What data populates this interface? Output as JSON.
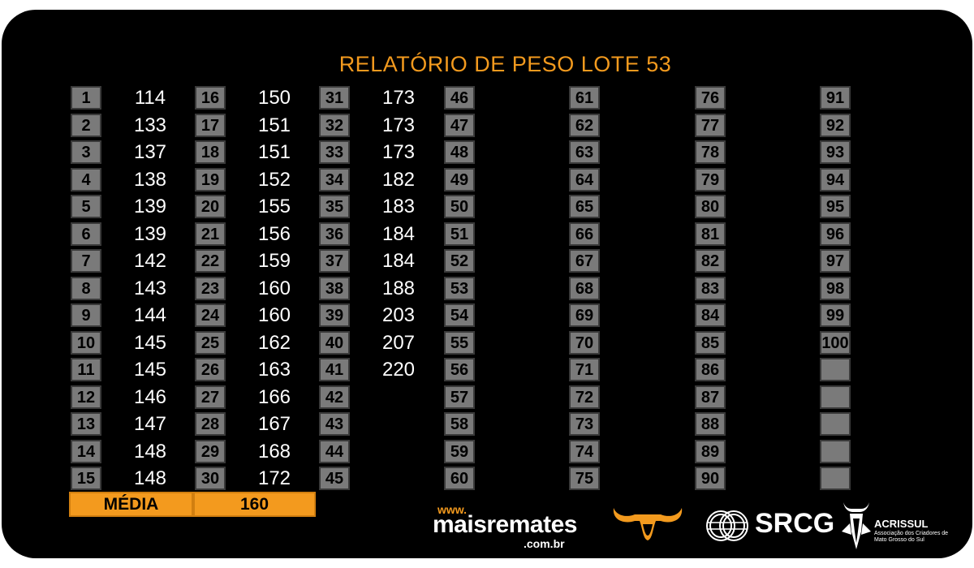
{
  "title": "RELATÓRIO DE PESO LOTE 53",
  "columns": [
    {
      "numbers": [
        "1",
        "2",
        "3",
        "4",
        "5",
        "6",
        "7",
        "8",
        "9",
        "10",
        "11",
        "12",
        "13",
        "14",
        "15"
      ],
      "weights": [
        "114",
        "133",
        "137",
        "138",
        "139",
        "139",
        "142",
        "143",
        "144",
        "145",
        "145",
        "146",
        "147",
        "148",
        "148"
      ]
    },
    {
      "numbers": [
        "16",
        "17",
        "18",
        "19",
        "20",
        "21",
        "22",
        "23",
        "24",
        "25",
        "26",
        "27",
        "28",
        "29",
        "30"
      ],
      "weights": [
        "150",
        "151",
        "151",
        "152",
        "155",
        "156",
        "159",
        "160",
        "160",
        "162",
        "163",
        "166",
        "167",
        "168",
        "172"
      ]
    },
    {
      "numbers": [
        "31",
        "32",
        "33",
        "34",
        "35",
        "36",
        "37",
        "38",
        "39",
        "40",
        "41",
        "42",
        "43",
        "44",
        "45"
      ],
      "weights": [
        "173",
        "173",
        "173",
        "182",
        "183",
        "184",
        "184",
        "188",
        "203",
        "207",
        "220",
        "",
        "",
        "",
        ""
      ]
    },
    {
      "numbers": [
        "46",
        "47",
        "48",
        "49",
        "50",
        "51",
        "52",
        "53",
        "54",
        "55",
        "56",
        "57",
        "58",
        "59",
        "60"
      ],
      "weights": []
    },
    {
      "numbers": [
        "61",
        "62",
        "63",
        "64",
        "65",
        "66",
        "67",
        "68",
        "69",
        "70",
        "71",
        "72",
        "73",
        "74",
        "75"
      ],
      "weights": []
    },
    {
      "numbers": [
        "76",
        "77",
        "78",
        "79",
        "80",
        "81",
        "82",
        "83",
        "84",
        "85",
        "86",
        "87",
        "88",
        "89",
        "90"
      ],
      "weights": []
    },
    {
      "numbers": [
        "91",
        "92",
        "93",
        "94",
        "95",
        "96",
        "97",
        "98",
        "99",
        "100",
        "",
        "",
        "",
        "",
        ""
      ],
      "weights": []
    }
  ],
  "average": {
    "label": "MÉDIA",
    "value": "160"
  },
  "logos": {
    "maisremates": {
      "prefix": "www.",
      "name": "maisremates",
      "domain": ".com.br"
    },
    "srcg": "SRCG",
    "acrissul": {
      "name": "ACRISSUL",
      "subtitle": "Associação dos Criadores de Mato Grosso do Sul"
    }
  },
  "colors": {
    "accent": "#f39a1e",
    "cell": "#7a7a7a",
    "background": "#000000"
  }
}
